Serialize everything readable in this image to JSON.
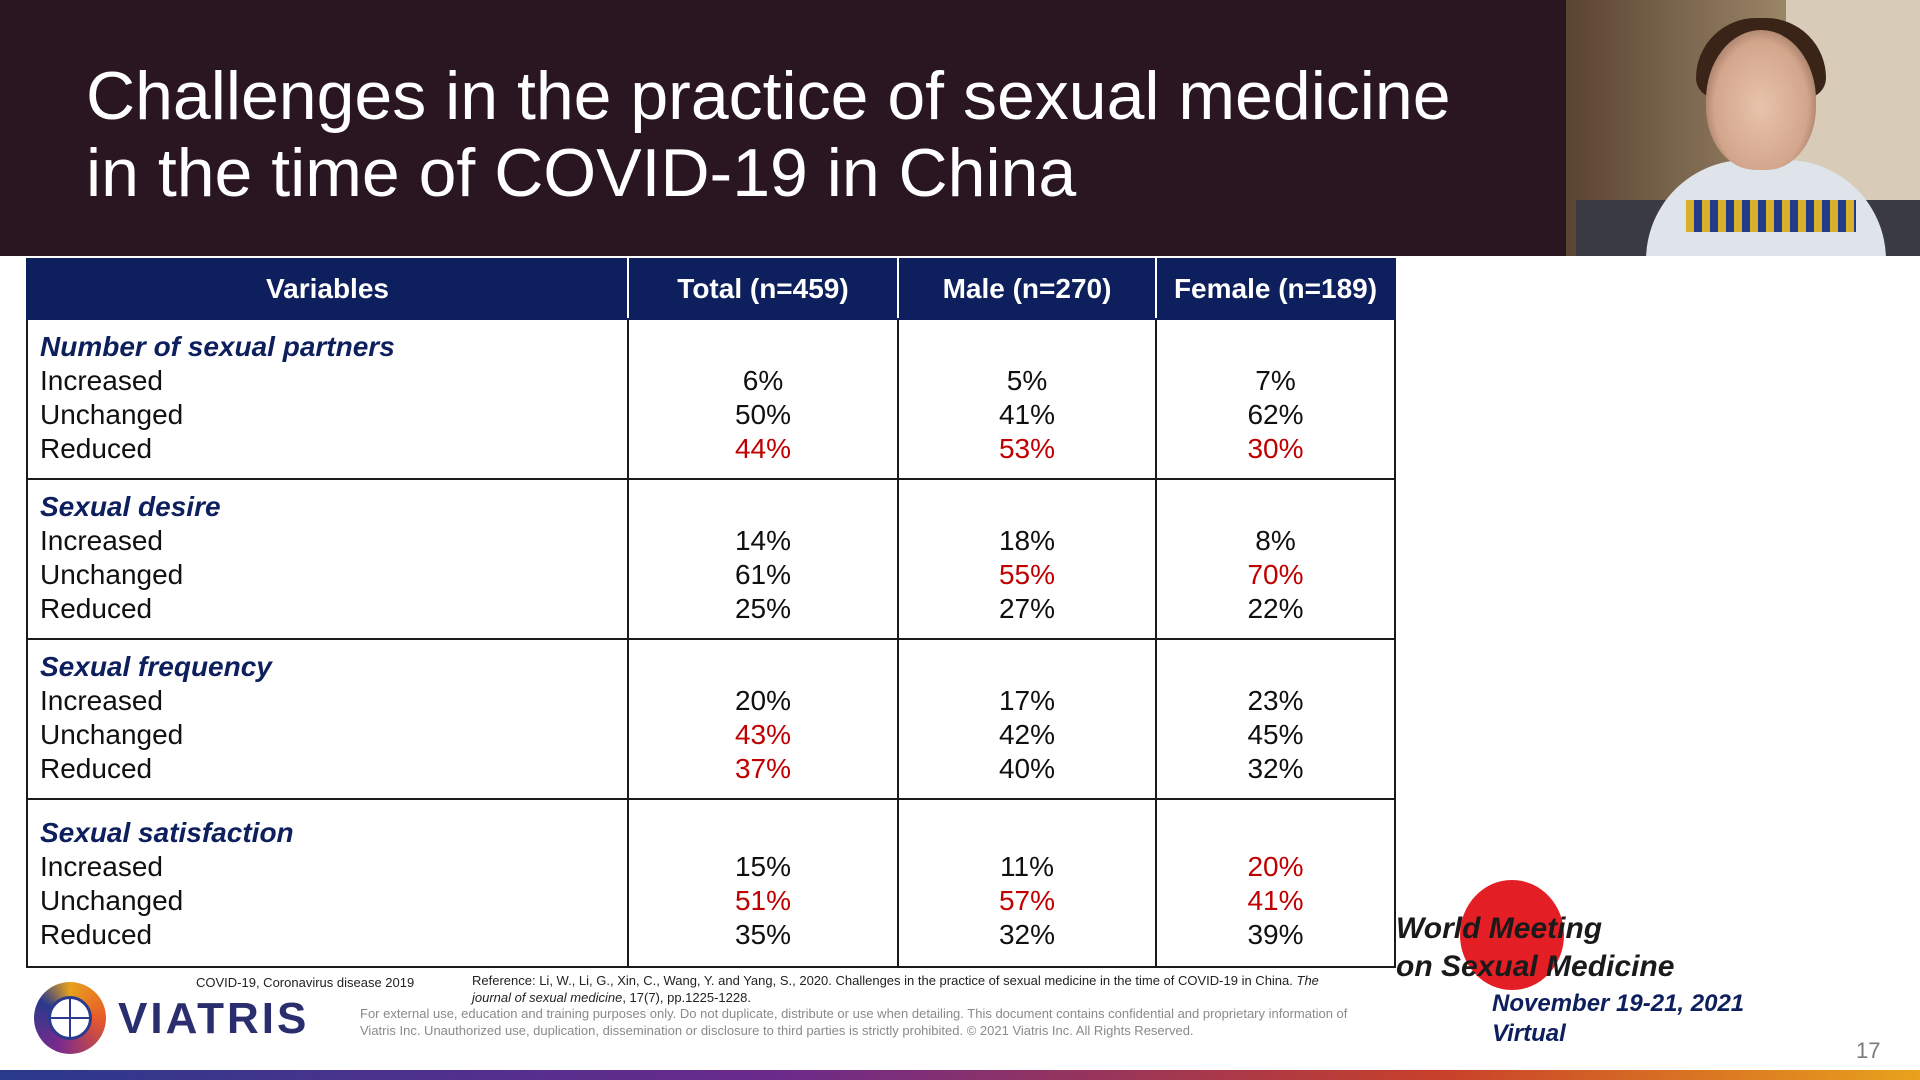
{
  "slide": {
    "title_lines": [
      "Challenges in the practice of sexual medicine",
      "in the time of COVID-19 in China"
    ],
    "page_number": "17"
  },
  "table": {
    "headers": [
      "Variables",
      "Total (n=459)",
      "Male (n=270)",
      "Female (n=189)"
    ],
    "highlight_color": "#c00000",
    "groups": [
      {
        "title": "Number of sexual partners",
        "rows": [
          "Increased",
          "Unchanged",
          "Reduced"
        ],
        "total": [
          "6%",
          "50%",
          "44%"
        ],
        "male": [
          "5%",
          "41%",
          "53%"
        ],
        "female": [
          "7%",
          "62%",
          "30%"
        ],
        "highlighted": {
          "total": [
            2
          ],
          "male": [
            2
          ],
          "female": [
            2
          ]
        }
      },
      {
        "title": "Sexual desire",
        "rows": [
          "Increased",
          "Unchanged",
          "Reduced"
        ],
        "total": [
          "14%",
          "61%",
          "25%"
        ],
        "male": [
          "18%",
          "55%",
          "27%"
        ],
        "female": [
          "8%",
          "70%",
          "22%"
        ],
        "highlighted": {
          "total": [],
          "male": [
            1
          ],
          "female": [
            1
          ]
        }
      },
      {
        "title": "Sexual frequency",
        "rows": [
          "Increased",
          "Unchanged",
          "Reduced"
        ],
        "total": [
          "20%",
          "43%",
          "37%"
        ],
        "male": [
          "17%",
          "42%",
          "40%"
        ],
        "female": [
          "23%",
          "45%",
          "32%"
        ],
        "highlighted": {
          "total": [
            1,
            2
          ],
          "male": [],
          "female": []
        }
      },
      {
        "title": "Sexual satisfaction",
        "rows": [
          "Increased",
          "Unchanged",
          "Reduced"
        ],
        "total": [
          "15%",
          "51%",
          "35%"
        ],
        "male": [
          "11%",
          "57%",
          "32%"
        ],
        "female": [
          "20%",
          "41%",
          "39%"
        ],
        "highlighted": {
          "total": [
            1
          ],
          "male": [
            1
          ],
          "female": [
            0,
            1
          ]
        }
      }
    ]
  },
  "footer": {
    "logo_text": "VIATRIS",
    "abbreviation": "COVID-19, Coronavirus disease 2019",
    "reference_prefix": "Reference: Li, W., Li, G., Xin, C., Wang, Y. and Yang, S., 2020. Challenges in the practice of sexual medicine in the time of COVID-19 in China. ",
    "reference_journal": "The journal of sexual medicine",
    "reference_suffix": ", 17(7), pp.1225-1228.",
    "disclaimer": "For external use, education and training purposes only. Do not duplicate, distribute or use when detailing. This document contains confidential and proprietary information of Viatris Inc. Unauthorized use, duplication, dissemination or disclosure to third parties is strictly prohibited. © 2021 Viatris Inc. All Rights Reserved."
  },
  "event": {
    "line1": "World Meeting",
    "line2": "on Sexual Medicine",
    "dates": "November 19-21, 2021",
    "format": "Virtual"
  },
  "icons": {
    "logo": "viatris-globe-logo",
    "event_logo": "red-circle-logo"
  }
}
